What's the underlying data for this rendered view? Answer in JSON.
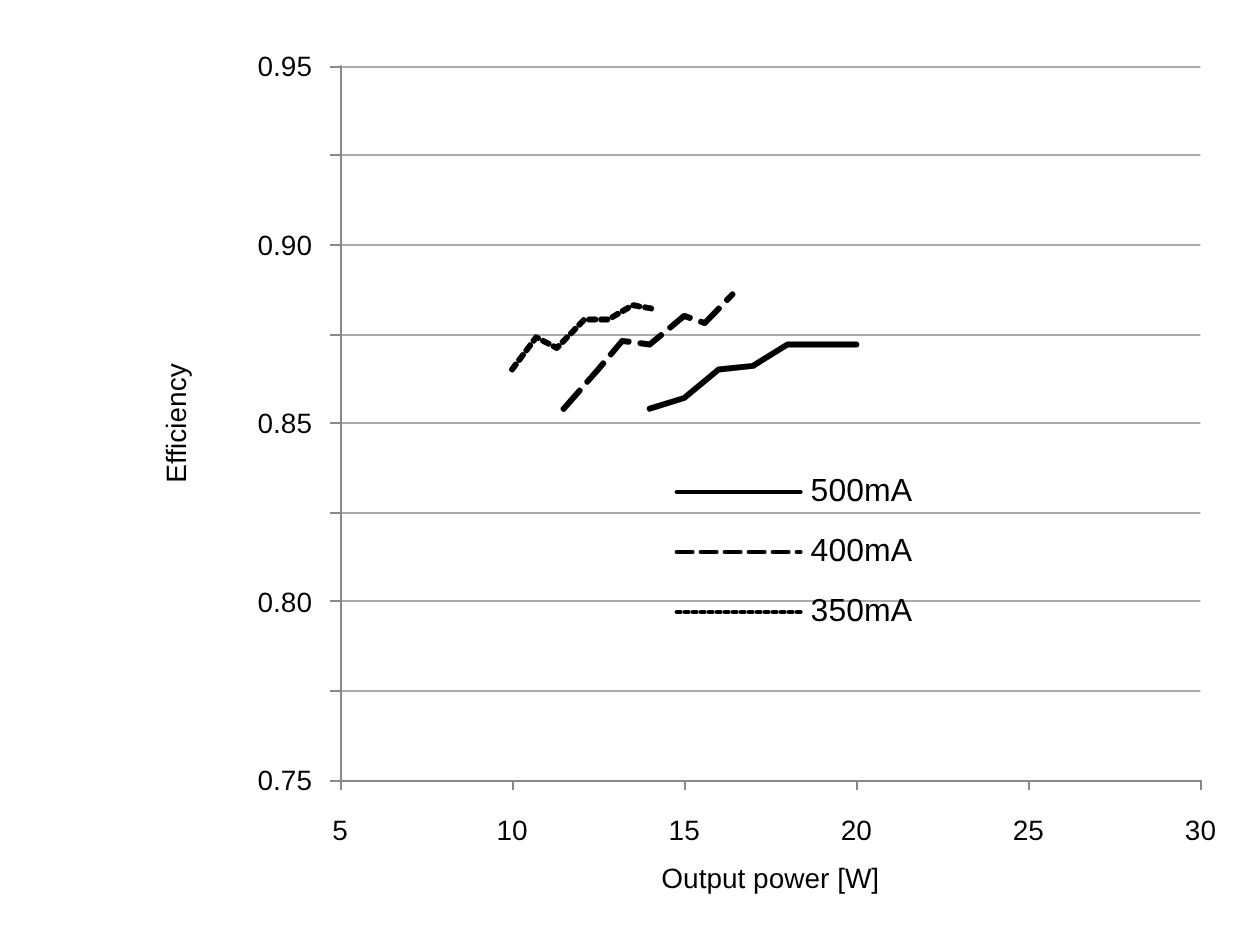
{
  "chart_data": {
    "type": "line",
    "xlabel": "Output power [W]",
    "ylabel": "Efficiency",
    "xlim": [
      5,
      30
    ],
    "xticks": [
      5,
      10,
      15,
      20,
      25,
      30
    ],
    "ylim": [
      0.75,
      0.95
    ],
    "yticks": [
      {
        "value": 0.75,
        "label": "0.75"
      },
      {
        "value": 0.775,
        "label": null
      },
      {
        "value": 0.8,
        "label": "0.80"
      },
      {
        "value": 0.825,
        "label": null
      },
      {
        "value": 0.85,
        "label": "0.85"
      },
      {
        "value": 0.875,
        "label": null
      },
      {
        "value": 0.9,
        "label": "0.90"
      },
      {
        "value": 0.925,
        "label": null
      },
      {
        "value": 0.95,
        "label": "0.95"
      }
    ],
    "grid": "y",
    "legend": "right",
    "marker": "none",
    "series": [
      {
        "name": "500mA",
        "color": "#000000",
        "line_style": "solid",
        "x": [
          14,
          15,
          16,
          17,
          18,
          19,
          20
        ],
        "values": [
          0.854,
          0.857,
          0.865,
          0.866,
          0.872,
          0.872,
          0.872
        ]
      },
      {
        "name": "400mA",
        "color": "#000000",
        "line_style": "dashed",
        "x": [
          11.5,
          12.5,
          13.2,
          14,
          15,
          15.6,
          16.4
        ],
        "values": [
          0.854,
          0.865,
          0.873,
          0.872,
          0.88,
          0.878,
          0.886
        ]
      },
      {
        "name": "350mA",
        "color": "#000000",
        "line_style": "dotted",
        "x": [
          10,
          10.7,
          11.3,
          12.1,
          12.8,
          13.5,
          14.1
        ],
        "values": [
          0.865,
          0.874,
          0.871,
          0.879,
          0.879,
          0.883,
          0.882
        ]
      }
    ]
  }
}
